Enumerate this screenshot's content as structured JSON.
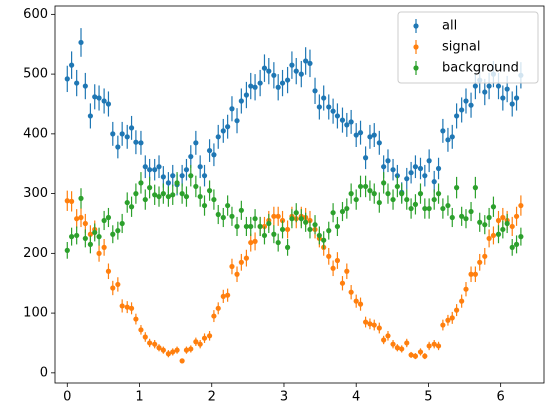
{
  "chart_data": {
    "type": "errorbar",
    "x": [
      0,
      0.06,
      0.13,
      0.19,
      0.25,
      0.32,
      0.38,
      0.44,
      0.51,
      0.57,
      0.63,
      0.7,
      0.76,
      0.83,
      0.89,
      0.95,
      1.02,
      1.08,
      1.14,
      1.21,
      1.27,
      1.33,
      1.4,
      1.46,
      1.52,
      1.59,
      1.65,
      1.71,
      1.78,
      1.84,
      1.9,
      1.97,
      2.03,
      2.09,
      2.16,
      2.22,
      2.28,
      2.35,
      2.41,
      2.48,
      2.54,
      2.6,
      2.67,
      2.73,
      2.79,
      2.86,
      2.92,
      2.98,
      3.05,
      3.11,
      3.17,
      3.24,
      3.3,
      3.36,
      3.43,
      3.49,
      3.55,
      3.62,
      3.68,
      3.74,
      3.81,
      3.87,
      3.93,
      4.0,
      4.06,
      4.13,
      4.19,
      4.25,
      4.32,
      4.38,
      4.44,
      4.51,
      4.57,
      4.63,
      4.7,
      4.76,
      4.82,
      4.89,
      4.95,
      5.01,
      5.08,
      5.14,
      5.2,
      5.27,
      5.33,
      5.39,
      5.46,
      5.52,
      5.59,
      5.65,
      5.71,
      5.78,
      5.84,
      5.9,
      5.97,
      6.03,
      6.09,
      6.16,
      6.22,
      6.28
    ],
    "series": [
      {
        "name": "all",
        "color": "#1f77b4",
        "values": [
          492,
          515,
          485,
          553,
          480,
          430,
          462,
          460,
          455,
          450,
          400,
          378,
          400,
          395,
          410,
          386,
          385,
          345,
          340,
          340,
          345,
          328,
          318,
          330,
          315,
          330,
          340,
          362,
          385,
          345,
          330,
          372,
          365,
          395,
          405,
          412,
          442,
          422,
          455,
          465,
          480,
          478,
          485,
          510,
          505,
          498,
          478,
          485,
          490,
          515,
          505,
          500,
          522,
          518,
          472,
          445,
          460,
          445,
          438,
          430,
          423,
          415,
          420,
          398,
          402,
          360,
          395,
          398,
          385,
          345,
          355,
          340,
          330,
          302,
          325,
          335,
          345,
          342,
          330,
          355,
          320,
          342,
          405,
          390,
          395,
          430,
          440,
          455,
          448,
          480,
          490,
          470,
          480,
          500,
          480,
          460,
          475,
          450,
          460,
          498
        ],
        "errors": [
          22,
          23,
          22,
          24,
          22,
          21,
          21,
          21,
          21,
          21,
          20,
          19,
          20,
          20,
          20,
          20,
          20,
          19,
          18,
          18,
          19,
          18,
          18,
          18,
          18,
          18,
          18,
          19,
          20,
          19,
          18,
          19,
          19,
          20,
          20,
          20,
          21,
          21,
          21,
          22,
          22,
          22,
          22,
          23,
          22,
          22,
          22,
          22,
          22,
          23,
          22,
          22,
          23,
          23,
          22,
          21,
          21,
          21,
          21,
          21,
          21,
          20,
          20,
          20,
          20,
          19,
          20,
          20,
          20,
          19,
          19,
          18,
          18,
          17,
          18,
          18,
          19,
          18,
          18,
          19,
          18,
          18,
          20,
          20,
          20,
          21,
          21,
          21,
          21,
          22,
          22,
          22,
          22,
          22,
          22,
          21,
          22,
          21,
          21,
          22
        ]
      },
      {
        "name": "signal",
        "color": "#ff7f0e",
        "values": [
          288,
          287,
          258,
          260,
          250,
          232,
          240,
          200,
          210,
          170,
          142,
          148,
          112,
          110,
          108,
          90,
          72,
          60,
          50,
          48,
          42,
          38,
          32,
          35,
          38,
          20,
          38,
          40,
          52,
          48,
          58,
          62,
          95,
          108,
          128,
          130,
          178,
          165,
          185,
          192,
          218,
          220,
          245,
          245,
          255,
          262,
          262,
          255,
          240,
          262,
          258,
          262,
          260,
          255,
          240,
          225,
          210,
          195,
          175,
          188,
          150,
          170,
          135,
          120,
          115,
          85,
          82,
          80,
          75,
          55,
          62,
          48,
          42,
          40,
          50,
          30,
          28,
          35,
          28,
          45,
          48,
          45,
          80,
          88,
          92,
          105,
          120,
          140,
          165,
          165,
          185,
          195,
          225,
          230,
          255,
          260,
          255,
          245,
          262,
          280
        ],
        "errors": [
          17,
          17,
          16,
          16,
          16,
          15,
          15,
          14,
          14,
          13,
          12,
          12,
          11,
          10,
          10,
          9,
          8,
          8,
          7,
          7,
          6,
          6,
          6,
          6,
          6,
          4,
          6,
          6,
          7,
          7,
          8,
          8,
          10,
          10,
          11,
          11,
          13,
          13,
          14,
          14,
          15,
          15,
          16,
          16,
          16,
          16,
          16,
          16,
          15,
          16,
          16,
          16,
          16,
          16,
          15,
          15,
          14,
          14,
          13,
          14,
          12,
          13,
          12,
          11,
          11,
          9,
          9,
          9,
          9,
          7,
          8,
          7,
          6,
          6,
          7,
          5,
          5,
          6,
          5,
          7,
          7,
          7,
          9,
          9,
          10,
          10,
          11,
          12,
          13,
          13,
          14,
          14,
          15,
          15,
          16,
          16,
          16,
          16,
          16,
          17
        ]
      },
      {
        "name": "background",
        "color": "#2ca02c",
        "values": [
          205,
          228,
          230,
          292,
          225,
          215,
          235,
          228,
          255,
          260,
          232,
          238,
          250,
          285,
          278,
          300,
          318,
          290,
          310,
          298,
          295,
          300,
          295,
          298,
          318,
          300,
          295,
          330,
          312,
          295,
          280,
          305,
          290,
          265,
          260,
          280,
          262,
          245,
          272,
          245,
          245,
          258,
          245,
          230,
          250,
          232,
          218,
          240,
          210,
          258,
          268,
          258,
          252,
          240,
          248,
          230,
          222,
          238,
          268,
          245,
          270,
          275,
          300,
          290,
          312,
          312,
          305,
          300,
          285,
          318,
          300,
          290,
          312,
          300,
          290,
          275,
          282,
          300,
          275,
          275,
          290,
          300,
          275,
          280,
          260,
          310,
          262,
          258,
          270,
          310,
          252,
          248,
          260,
          278,
          232,
          240,
          250,
          210,
          215,
          228
        ],
        "errors": [
          14,
          15,
          15,
          17,
          15,
          15,
          15,
          15,
          16,
          16,
          15,
          15,
          16,
          17,
          17,
          17,
          18,
          17,
          18,
          17,
          17,
          17,
          17,
          17,
          18,
          17,
          17,
          18,
          18,
          17,
          17,
          17,
          17,
          16,
          16,
          17,
          16,
          16,
          16,
          16,
          16,
          16,
          16,
          15,
          16,
          15,
          15,
          15,
          14,
          16,
          16,
          16,
          16,
          15,
          16,
          15,
          15,
          15,
          16,
          16,
          16,
          17,
          17,
          17,
          18,
          18,
          17,
          17,
          17,
          18,
          17,
          17,
          18,
          17,
          17,
          17,
          17,
          17,
          17,
          17,
          17,
          17,
          17,
          17,
          16,
          18,
          16,
          16,
          16,
          18,
          16,
          16,
          16,
          17,
          15,
          15,
          16,
          14,
          15,
          15
        ]
      }
    ],
    "xlim": [
      -0.17,
      6.6
    ],
    "xticks": [
      0,
      1,
      2,
      3,
      4,
      5,
      6
    ],
    "ylim": [
      -17,
      614
    ],
    "yticks": [
      0,
      100,
      200,
      300,
      400,
      500,
      600
    ],
    "legend": "upper right"
  }
}
